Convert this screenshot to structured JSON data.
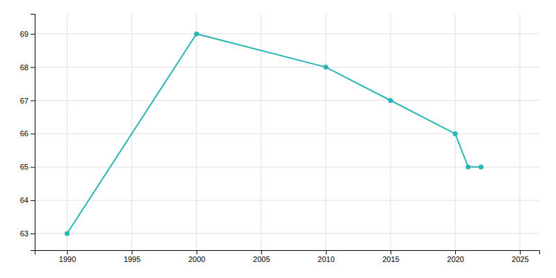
{
  "chart_data": {
    "type": "line",
    "x": [
      1990,
      2000,
      2010,
      2015,
      2020,
      2021,
      2022
    ],
    "values": [
      63,
      69,
      68,
      67,
      66,
      65,
      65
    ],
    "color": "#2ab5b5",
    "marker": "circle",
    "xlim": [
      1987.5,
      2026.5
    ],
    "ylim": [
      62.5,
      69.6
    ],
    "xticks": [
      1990,
      1995,
      2000,
      2005,
      2010,
      2015,
      2020,
      2025
    ],
    "yticks": [
      63,
      64,
      65,
      66,
      67,
      68,
      69
    ],
    "grid": true
  }
}
